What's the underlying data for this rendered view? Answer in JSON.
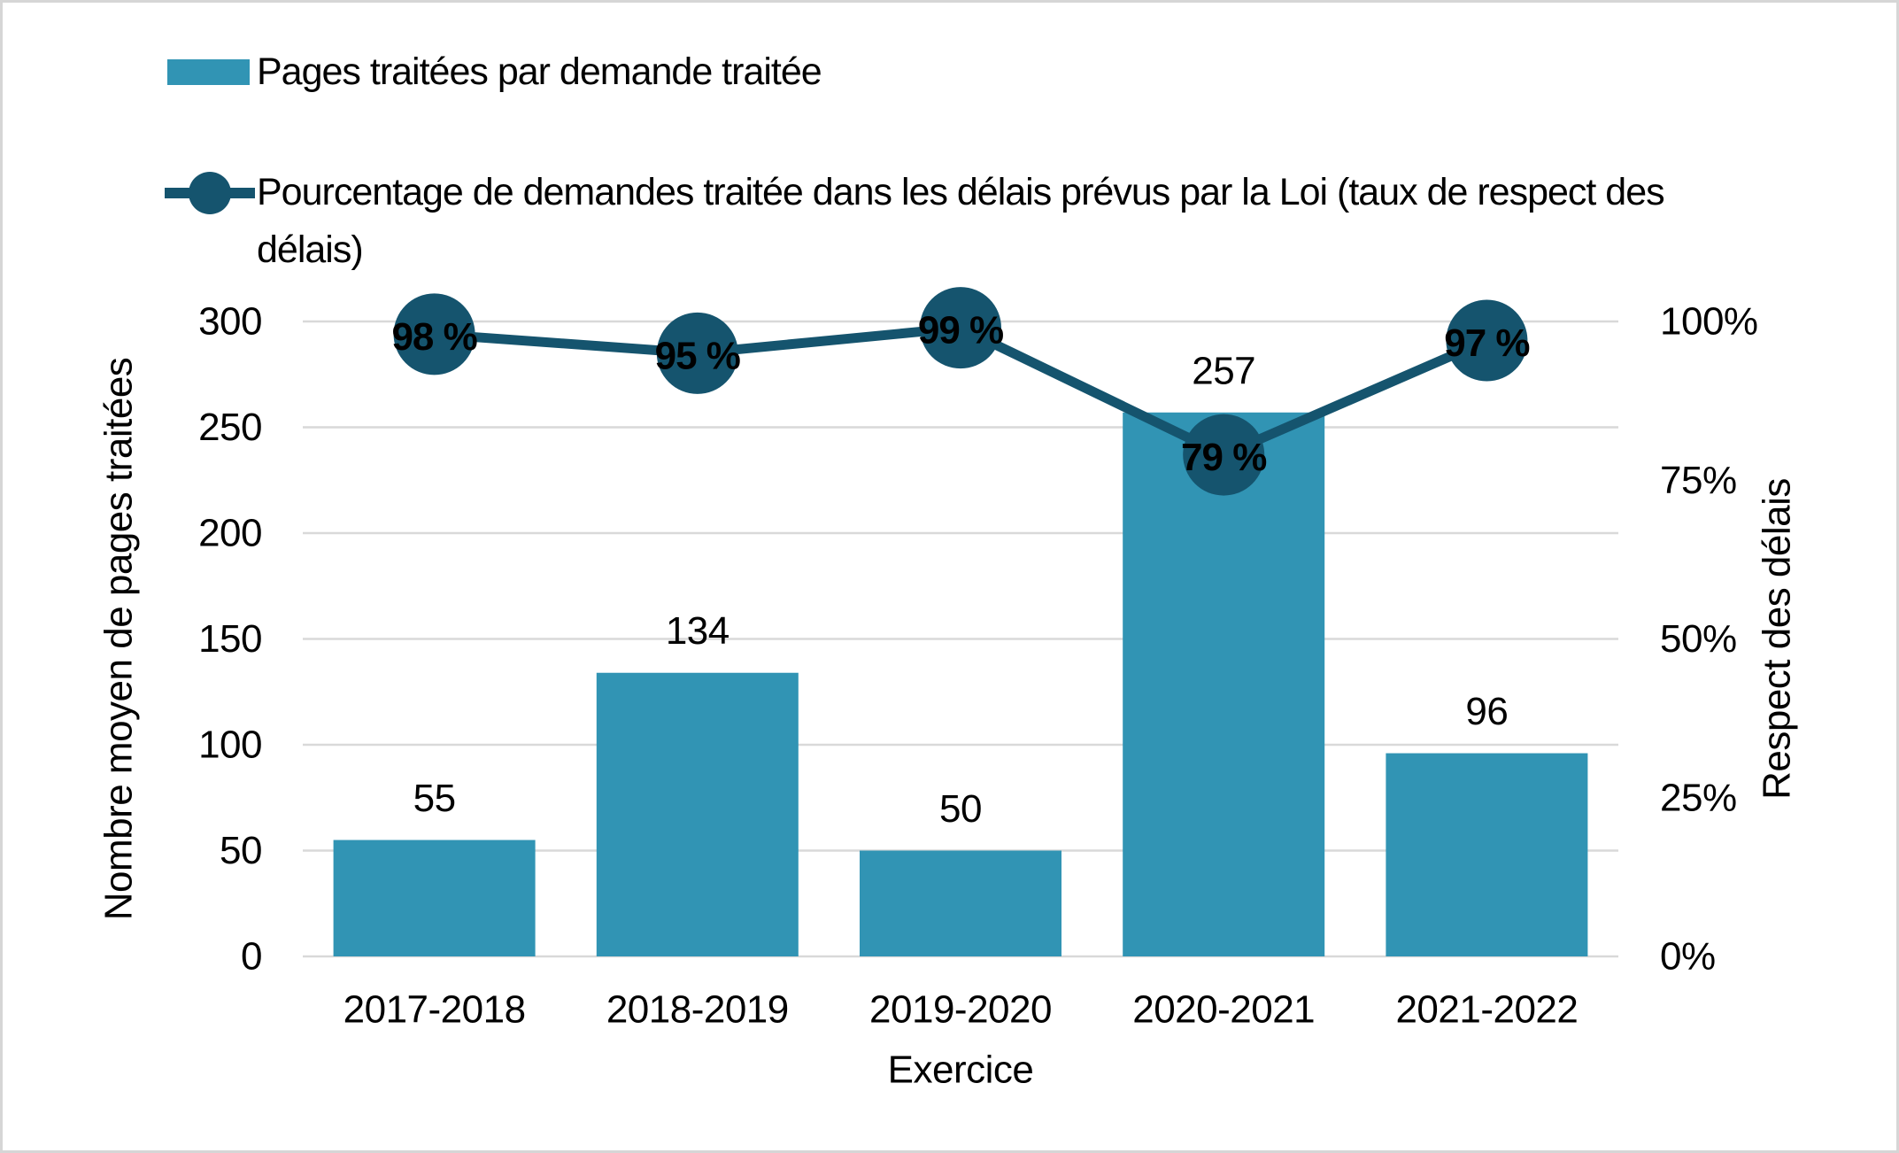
{
  "colors": {
    "bar": "#3194B4",
    "line": "#15546E",
    "gridline": "#D9D9D9",
    "marker_label": "#FFFFFF",
    "text": "#000000",
    "border": "#D6D6D6",
    "background": "#FFFFFF"
  },
  "legend": {
    "bar_label": "Pages traitées par demande traitée",
    "line_label_lines": [
      "Pourcentage de demandes traitée dans les délais prévus par la Loi (taux de respect des",
      "délais)"
    ]
  },
  "chart_data": {
    "type": "combo-bar-line",
    "categories": [
      "2017-2018",
      "2018-2019",
      "2019-2020",
      "2020-2021",
      "2021-2022"
    ],
    "series": [
      {
        "name": "Pages traitées par demande traitée",
        "type": "bar",
        "axis": "left",
        "values": [
          55,
          134,
          50,
          257,
          96
        ],
        "data_labels": [
          "55",
          "134",
          "50",
          "257",
          "96"
        ],
        "color": "#3194B4"
      },
      {
        "name": "Pourcentage de demandes traitée dans les délais prévus par la Loi (taux de respect des délais)",
        "type": "line",
        "axis": "right",
        "values": [
          98,
          95,
          99,
          79,
          97
        ],
        "data_labels": [
          "98 %",
          "95 %",
          "99 %",
          "79 %",
          "97 %"
        ],
        "color": "#15546E",
        "marker": "circle"
      }
    ],
    "left_axis": {
      "title": "Nombre moyen de pages traitées",
      "ticks": [
        0,
        50,
        100,
        150,
        200,
        250,
        300
      ],
      "tick_labels": [
        "0",
        "50",
        "100",
        "150",
        "200",
        "250",
        "300"
      ],
      "min": 0,
      "max": 300
    },
    "right_axis": {
      "title": "Respect des délais",
      "ticks": [
        0,
        25,
        50,
        75,
        100
      ],
      "tick_labels": [
        "0%",
        "25%",
        "50%",
        "75%",
        "100%"
      ],
      "min": 0,
      "max": 100
    },
    "x_axis": {
      "title": "Exercice"
    },
    "grid": true,
    "legend_position": "top-left"
  }
}
